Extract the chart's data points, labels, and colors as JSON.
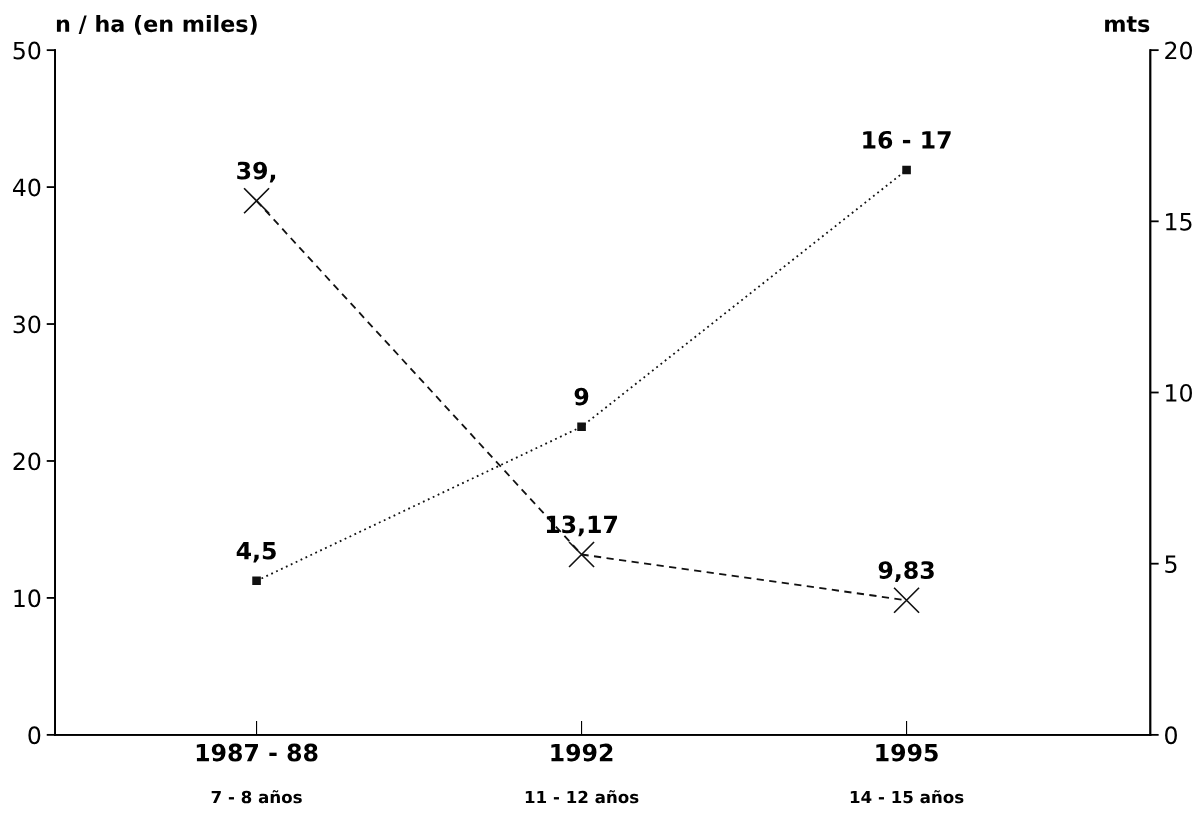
{
  "chart_data": {
    "type": "line",
    "categories": [
      "1987 - 88",
      "1992",
      "1995"
    ],
    "ylabel": "n / ha (en miles)",
    "y2label": "mts",
    "ylim": [
      0,
      50
    ],
    "yticks": [
      0,
      10,
      20,
      30,
      40,
      50
    ],
    "y2lim": [
      0,
      20
    ],
    "y2ticks": [
      0,
      5,
      10,
      15,
      20
    ],
    "series": [
      {
        "color": "#111111",
        "values": [
          39,
          13.17,
          9.83
        ],
        "marker": "cross",
        "line_style": "dashed",
        "value_labels": [
          "39,",
          "13,17",
          "9,83"
        ]
      },
      {
        "color": "#111111",
        "values": [
          4.5,
          9,
          16.5
        ],
        "axis": "y2",
        "marker": "square",
        "line_style": "dotted",
        "value_labels": [
          "4,5",
          "9",
          "16 - 17"
        ]
      }
    ],
    "annotations": [
      "7 - 8 años",
      "11 - 12 años",
      "14 - 15 años"
    ],
    "grid": false,
    "legend": false
  }
}
